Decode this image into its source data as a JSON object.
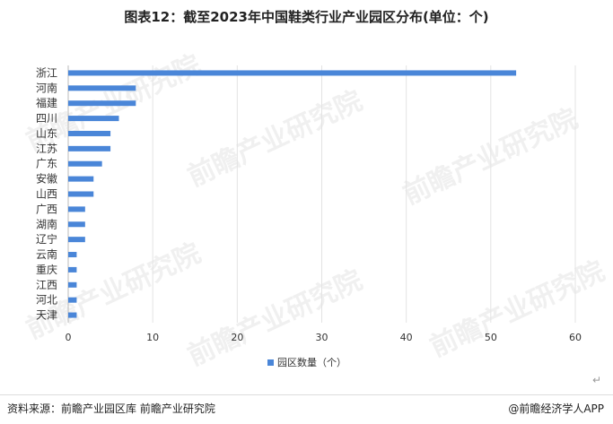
{
  "title": "图表12：截至2023年中国鞋类行业产业园区分布(单位：个)",
  "footer": {
    "source": "资料来源：前瞻产业园区库 前瞻产业研究院",
    "brand": "@前瞻经济学人APP"
  },
  "watermark": "前瞻产业研究院",
  "colors": {
    "bar": "#4a86d8",
    "grid": "#e3e3e3",
    "text": "#333333"
  },
  "chart_data": {
    "type": "bar",
    "orientation": "horizontal",
    "categories": [
      "浙江",
      "河南",
      "福建",
      "四川",
      "山东",
      "江苏",
      "广东",
      "安徽",
      "山西",
      "广西",
      "湖南",
      "辽宁",
      "云南",
      "重庆",
      "江西",
      "河北",
      "天津"
    ],
    "series": [
      {
        "name": "园区数量（个）",
        "values": [
          53,
          8,
          8,
          6,
          5,
          5,
          4,
          3,
          3,
          2,
          2,
          2,
          1,
          1,
          1,
          1,
          1
        ]
      }
    ],
    "xlim": [
      0,
      60
    ],
    "xticks": [
      0,
      10,
      20,
      30,
      40,
      50,
      60
    ],
    "grid": true,
    "legend_position": "bottom"
  }
}
